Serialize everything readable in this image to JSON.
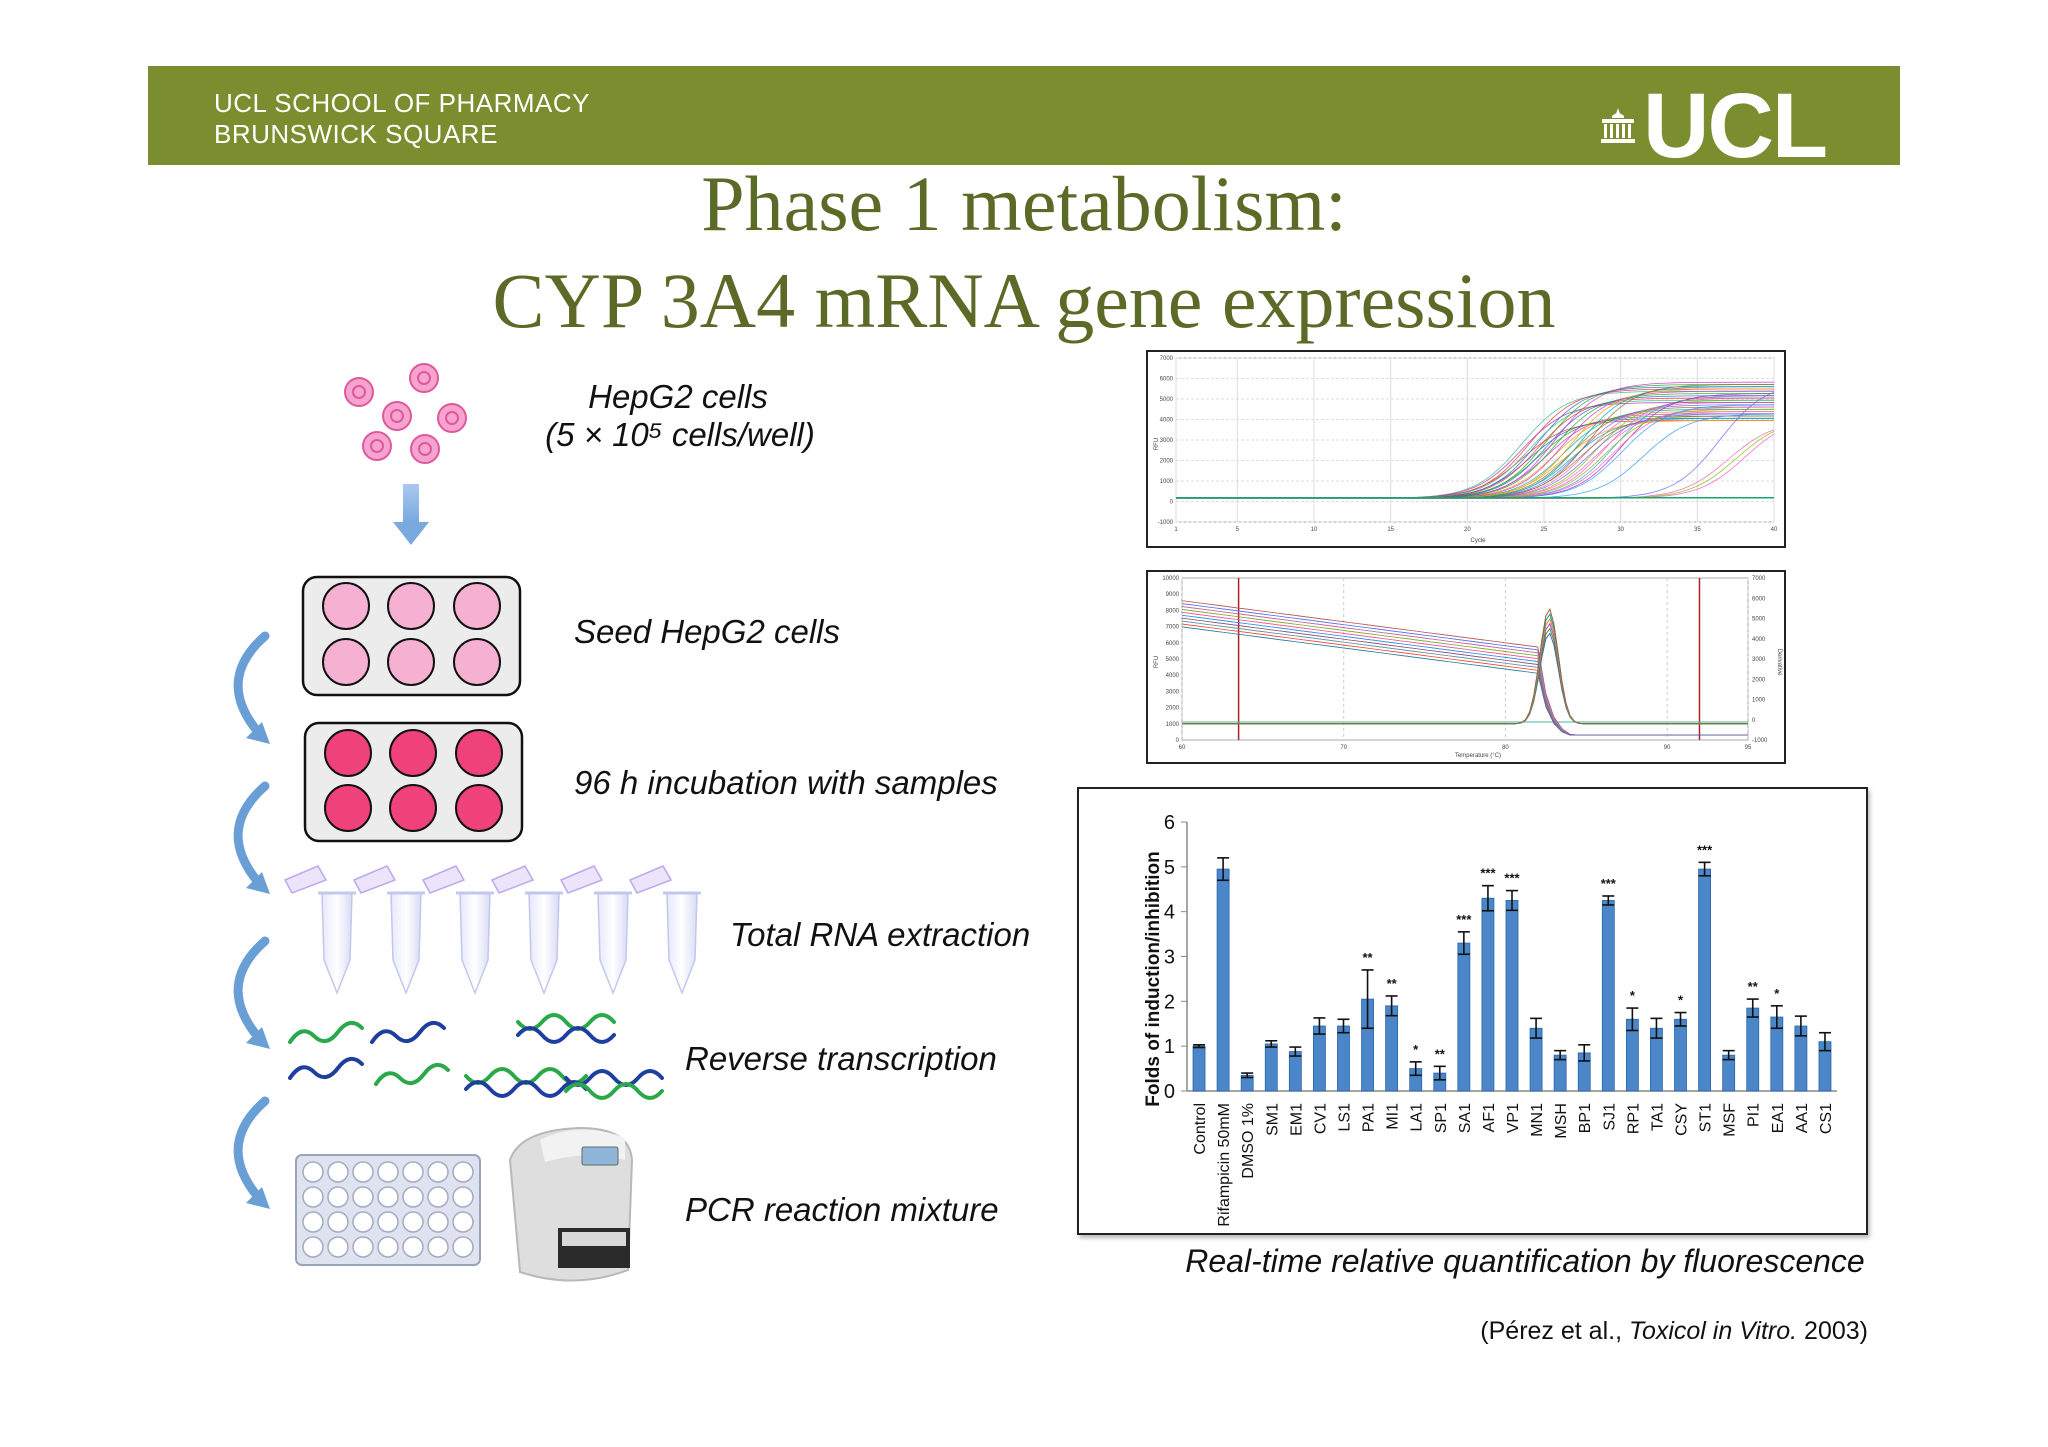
{
  "header": {
    "line1": "UCL SCHOOL OF PHARMACY",
    "line2": "BRUNSWICK SQUARE",
    "logo": "UCL"
  },
  "title": {
    "line1": "Phase 1 metabolism:",
    "line2": "CYP 3A4 mRNA gene expression"
  },
  "workflow": {
    "cells_label": "HepG2 cells",
    "cells_density": "(5 × 10⁵ cells/well)",
    "seed": "Seed HepG2 cells",
    "incubation": "96 h incubation with samples",
    "rna": "Total RNA extraction",
    "rt": "Reverse transcription",
    "pcr": "PCR reaction mixture"
  },
  "amplification_plot": {
    "x_label": "Cycle",
    "y_label": "RFU",
    "y_ticks": [
      "7000",
      "6000",
      "5000",
      "4000",
      "3000",
      "2000",
      "1000",
      "0",
      "-1000"
    ],
    "x_ticks": [
      "1",
      "5",
      "10",
      "15",
      "20",
      "25",
      "30",
      "35",
      "40"
    ]
  },
  "melt_plot": {
    "x_label": "Temperature (°C)",
    "y_label": "RFU",
    "y2_label": "Derivative",
    "y_ticks": [
      "10000",
      "9000",
      "8000",
      "7000",
      "6000",
      "5000",
      "4000",
      "3000",
      "2000",
      "1000",
      "0"
    ],
    "y2_ticks": [
      "7000",
      "6000",
      "5000",
      "4000",
      "3000",
      "2000",
      "1000",
      "0",
      "-1000"
    ],
    "x_ticks": [
      "60",
      "70",
      "80",
      "90",
      "95"
    ]
  },
  "chart_data": {
    "type": "bar",
    "title": "",
    "xlabel": "",
    "ylabel": "Folds of induction/inhibition",
    "ylim": [
      0,
      6
    ],
    "yticks": [
      "0",
      "1",
      "2",
      "3",
      "4",
      "5",
      "6"
    ],
    "categories": [
      "Control",
      "Rifampicin 50mM",
      "DMSO 1%",
      "SM1",
      "EM1",
      "CV1",
      "LS1",
      "PA1",
      "MI1",
      "LA1",
      "SP1",
      "SA1",
      "AF1",
      "VP1",
      "MN1",
      "MSH",
      "BP1",
      "SJ1",
      "RP1",
      "TA1",
      "CSY",
      "ST1",
      "MSF",
      "PI1",
      "EA1",
      "AA1",
      "CS1"
    ],
    "values": [
      1.0,
      4.95,
      0.35,
      1.05,
      0.88,
      1.45,
      1.45,
      2.05,
      1.9,
      0.5,
      0.4,
      3.3,
      4.3,
      4.25,
      1.4,
      0.8,
      0.85,
      4.25,
      1.6,
      1.4,
      1.6,
      4.95,
      0.8,
      1.85,
      1.65,
      1.45,
      1.1
    ],
    "errors": [
      0.03,
      0.25,
      0.05,
      0.07,
      0.1,
      0.18,
      0.15,
      0.65,
      0.22,
      0.15,
      0.15,
      0.25,
      0.28,
      0.22,
      0.22,
      0.1,
      0.18,
      0.1,
      0.25,
      0.22,
      0.15,
      0.15,
      0.1,
      0.2,
      0.25,
      0.22,
      0.2
    ],
    "significance": [
      "",
      "",
      "",
      "",
      "",
      "",
      "",
      "**",
      "**",
      "*",
      "**",
      "***",
      "***",
      "***",
      "",
      "",
      "",
      "***",
      "*",
      "",
      "*",
      "***",
      "",
      "**",
      "*",
      "",
      ""
    ],
    "color": "#4a86c8"
  },
  "caption": "Real-time relative quantification by fluorescence",
  "citation": {
    "prefix": "(Pérez et al., ",
    "journal": "Toxicol in Vitro.",
    "year": " 2003)"
  },
  "colors": {
    "header": "#7a8d2f",
    "title": "#5b6a27",
    "bar": "#4a86c8",
    "pink_light": "#f5b0d2",
    "pink_dark": "#f0427a",
    "arrow": "#5b9bd5"
  }
}
